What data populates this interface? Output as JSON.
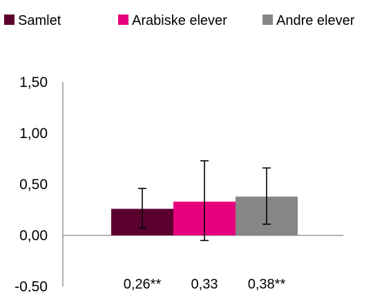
{
  "chart_data": {
    "type": "bar",
    "categories": [
      "Samlet",
      "Arabiske elever",
      "Andre elever"
    ],
    "values": [
      0.26,
      0.33,
      0.38
    ],
    "error_low": [
      0.07,
      -0.05,
      0.11
    ],
    "error_high": [
      0.46,
      0.73,
      0.66
    ],
    "data_labels": [
      "0,26**",
      "0,33",
      "0,38**"
    ],
    "colors": [
      "#5c0030",
      "#e6007e",
      "#868686"
    ],
    "yticks": [
      "1,50",
      "1,00",
      "0,50",
      "0,00",
      "-0,50"
    ],
    "ytick_values": [
      1.5,
      1.0,
      0.5,
      0.0,
      -0.5
    ],
    "ylim": [
      -0.5,
      1.5
    ],
    "legend_position": "top",
    "grid": false
  }
}
